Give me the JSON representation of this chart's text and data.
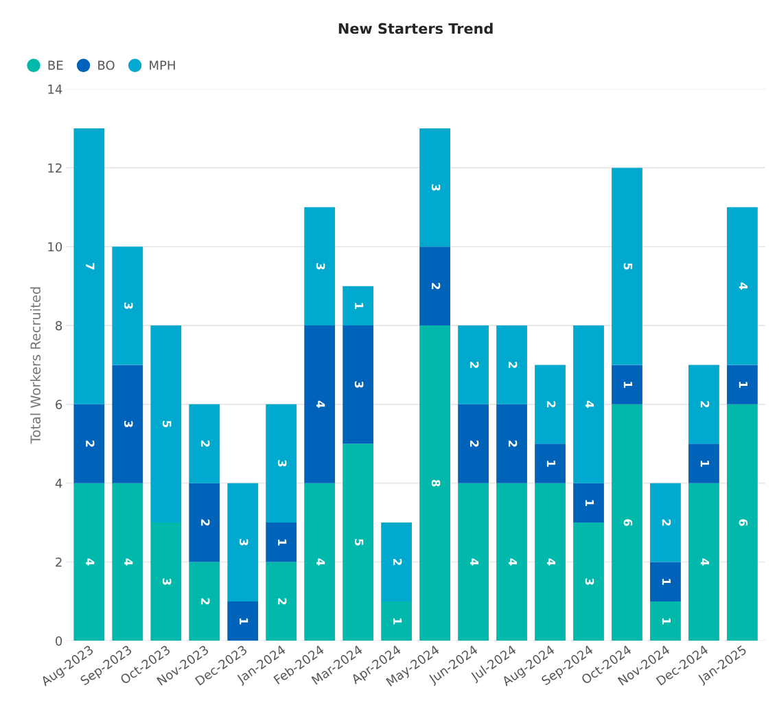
{
  "chart_data": {
    "type": "bar",
    "title": "New Starters Trend",
    "ylabel": "Total Workers Recruited",
    "categories": [
      "Aug-2023",
      "Sep-2023",
      "Oct-2023",
      "Nov-2023",
      "Dec-2023",
      "Jan-2024",
      "Feb-2024",
      "Mar-2024",
      "Apr-2024",
      "May-2024",
      "Jun-2024",
      "Jul-2024",
      "Aug-2024",
      "Sep-2024",
      "Oct-2024",
      "Nov-2024",
      "Dec-2024",
      "Jan-2025"
    ],
    "series": [
      {
        "name": "BE",
        "color": "#01b8aa",
        "values": [
          4,
          4,
          3,
          2,
          null,
          2,
          4,
          5,
          1,
          8,
          4,
          4,
          4,
          3,
          6,
          1,
          4,
          6
        ]
      },
      {
        "name": "BO",
        "color": "#0062b8",
        "values": [
          2,
          3,
          null,
          2,
          1,
          1,
          4,
          3,
          null,
          2,
          2,
          2,
          1,
          1,
          1,
          1,
          1,
          1
        ]
      },
      {
        "name": "MPH",
        "color": "#01a9cf",
        "values": [
          7,
          3,
          5,
          2,
          3,
          3,
          3,
          1,
          2,
          3,
          2,
          2,
          2,
          4,
          5,
          2,
          2,
          4
        ]
      }
    ],
    "stacked": true,
    "data_labels": true,
    "ylim": [
      0,
      14
    ],
    "yticks": [
      0,
      2,
      4,
      6,
      8,
      10,
      12,
      14
    ],
    "grid": "y",
    "legend": "top left"
  }
}
